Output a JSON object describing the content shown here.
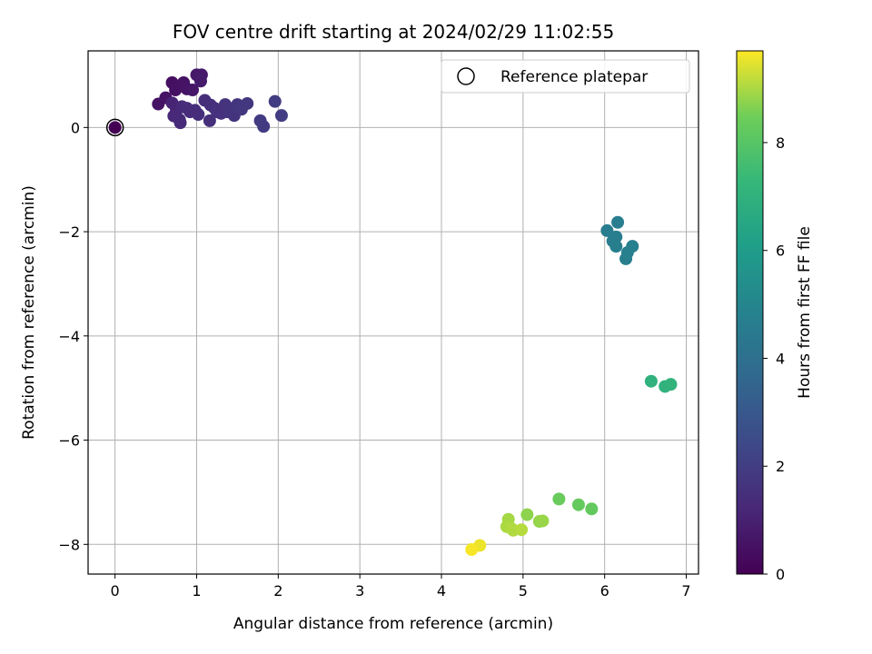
{
  "chart_data": {
    "type": "scatter",
    "title": "FOV centre drift starting at 2024/02/29 11:02:55",
    "xlabel": "Angular distance from reference (arcmin)",
    "ylabel": "Rotation from reference (arcmin)",
    "xlim": [
      -0.33,
      7.15
    ],
    "ylim": [
      -8.57,
      1.47
    ],
    "xticks": [
      0,
      1,
      2,
      3,
      4,
      5,
      6,
      7
    ],
    "yticks": [
      0,
      -2,
      -4,
      -6,
      -8
    ],
    "grid": true,
    "colormap": "viridis",
    "colorbar": {
      "label": "Hours from first FF file",
      "range": [
        0,
        9.7
      ],
      "ticks": [
        0,
        2,
        4,
        6,
        8
      ]
    },
    "legend": {
      "placement": "upper right",
      "entries": [
        "Reference platepar"
      ]
    },
    "reference_point": {
      "x": 0,
      "y": 0
    },
    "points": [
      {
        "x": 0.0,
        "y": 0.0,
        "c": 0.0
      },
      {
        "x": 0.53,
        "y": 0.45,
        "c": 0.55
      },
      {
        "x": 0.62,
        "y": 0.57,
        "c": 0.6
      },
      {
        "x": 0.7,
        "y": 0.86,
        "c": 0.45
      },
      {
        "x": 0.74,
        "y": 0.72,
        "c": 0.5
      },
      {
        "x": 0.84,
        "y": 0.86,
        "c": 0.55
      },
      {
        "x": 0.88,
        "y": 0.74,
        "c": 0.6
      },
      {
        "x": 0.95,
        "y": 0.72,
        "c": 0.65
      },
      {
        "x": 1.0,
        "y": 1.01,
        "c": 0.7
      },
      {
        "x": 1.06,
        "y": 1.01,
        "c": 0.75
      },
      {
        "x": 1.05,
        "y": 0.89,
        "c": 0.8
      },
      {
        "x": 0.7,
        "y": 0.47,
        "c": 1.1
      },
      {
        "x": 0.75,
        "y": 0.32,
        "c": 1.15
      },
      {
        "x": 0.72,
        "y": 0.22,
        "c": 1.2
      },
      {
        "x": 0.79,
        "y": 0.15,
        "c": 1.25
      },
      {
        "x": 0.8,
        "y": 0.09,
        "c": 1.3
      },
      {
        "x": 0.82,
        "y": 0.4,
        "c": 1.3
      },
      {
        "x": 0.88,
        "y": 0.37,
        "c": 1.35
      },
      {
        "x": 0.92,
        "y": 0.3,
        "c": 1.35
      },
      {
        "x": 0.98,
        "y": 0.33,
        "c": 1.4
      },
      {
        "x": 1.02,
        "y": 0.25,
        "c": 1.4
      },
      {
        "x": 1.1,
        "y": 0.52,
        "c": 1.45
      },
      {
        "x": 1.17,
        "y": 0.43,
        "c": 1.45
      },
      {
        "x": 1.22,
        "y": 0.37,
        "c": 1.5
      },
      {
        "x": 1.16,
        "y": 0.13,
        "c": 1.5
      },
      {
        "x": 1.25,
        "y": 0.3,
        "c": 1.55
      },
      {
        "x": 1.3,
        "y": 0.27,
        "c": 1.55
      },
      {
        "x": 1.35,
        "y": 0.44,
        "c": 1.6
      },
      {
        "x": 1.38,
        "y": 0.3,
        "c": 1.6
      },
      {
        "x": 1.42,
        "y": 0.36,
        "c": 1.65
      },
      {
        "x": 1.46,
        "y": 0.23,
        "c": 1.65
      },
      {
        "x": 1.5,
        "y": 0.44,
        "c": 1.7
      },
      {
        "x": 1.55,
        "y": 0.35,
        "c": 1.75
      },
      {
        "x": 1.62,
        "y": 0.46,
        "c": 1.8
      },
      {
        "x": 1.78,
        "y": 0.13,
        "c": 1.9
      },
      {
        "x": 1.82,
        "y": 0.02,
        "c": 1.9
      },
      {
        "x": 1.96,
        "y": 0.5,
        "c": 1.95
      },
      {
        "x": 2.04,
        "y": 0.23,
        "c": 2.0
      },
      {
        "x": 6.03,
        "y": -1.98,
        "c": 4.6
      },
      {
        "x": 6.1,
        "y": -2.18,
        "c": 4.6
      },
      {
        "x": 6.16,
        "y": -1.82,
        "c": 4.65
      },
      {
        "x": 6.14,
        "y": -2.1,
        "c": 4.65
      },
      {
        "x": 6.14,
        "y": -2.28,
        "c": 4.7
      },
      {
        "x": 6.26,
        "y": -2.52,
        "c": 4.7
      },
      {
        "x": 6.28,
        "y": -2.4,
        "c": 4.75
      },
      {
        "x": 6.34,
        "y": -2.28,
        "c": 4.75
      },
      {
        "x": 6.57,
        "y": -4.87,
        "c": 7.0
      },
      {
        "x": 6.74,
        "y": -4.97,
        "c": 7.05
      },
      {
        "x": 6.81,
        "y": -4.93,
        "c": 7.1
      },
      {
        "x": 5.44,
        "y": -7.13,
        "c": 8.35
      },
      {
        "x": 5.68,
        "y": -7.24,
        "c": 8.3
      },
      {
        "x": 5.84,
        "y": -7.32,
        "c": 8.25
      },
      {
        "x": 5.05,
        "y": -7.43,
        "c": 8.75
      },
      {
        "x": 5.2,
        "y": -7.56,
        "c": 8.8
      },
      {
        "x": 5.24,
        "y": -7.55,
        "c": 8.85
      },
      {
        "x": 4.82,
        "y": -7.52,
        "c": 8.95
      },
      {
        "x": 4.8,
        "y": -7.66,
        "c": 9.0
      },
      {
        "x": 4.86,
        "y": -7.7,
        "c": 9.05
      },
      {
        "x": 4.88,
        "y": -7.73,
        "c": 9.05
      },
      {
        "x": 4.98,
        "y": -7.72,
        "c": 9.1
      },
      {
        "x": 4.47,
        "y": -8.02,
        "c": 9.55
      },
      {
        "x": 4.37,
        "y": -8.1,
        "c": 9.65
      }
    ]
  }
}
